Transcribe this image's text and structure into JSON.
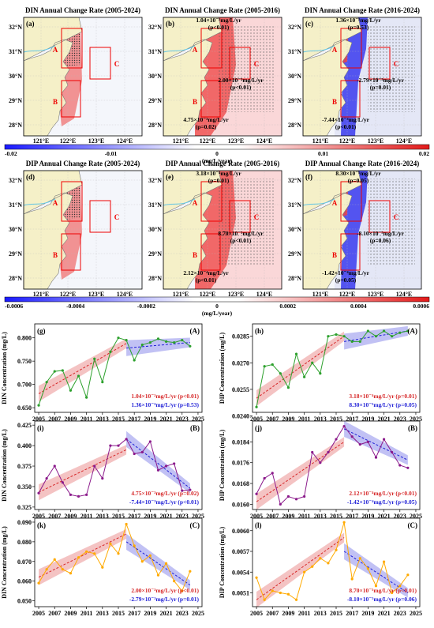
{
  "colors": {
    "red": "#d62728",
    "blue": "#1f1fd6",
    "green": "#2ca02c",
    "purple": "#8b1a8b",
    "orange": "#ffaa00"
  },
  "maps": [
    {
      "label": "(a)",
      "title": "DIN Annual Change Rate (2005-2024)",
      "variable": "DIN",
      "period": "full",
      "ann": []
    },
    {
      "label": "(b)",
      "title": "DIN Annual Change Rate (2005-2016)",
      "variable": "DIN",
      "period": "early",
      "ann": [
        {
          "text": "1.04×10⁻²mg/L/yr",
          "p": "(p<0.01)"
        },
        {
          "text": "2.00×10⁻³mg/L/yr",
          "p": "(p<0.01)"
        },
        {
          "text": "4.75×10⁻³mg/L/yr",
          "p": "(p=0.02)"
        }
      ]
    },
    {
      "label": "(c)",
      "title": "DIN Annual Change Rate (2016-2024)",
      "variable": "DIN",
      "period": "late",
      "ann": [
        {
          "text": "1.36×10⁻³mg/L/yr",
          "p": "(p=0.53)"
        },
        {
          "text": "-2.79×10⁻³mg/L/yr",
          "p": "(p=0.01)"
        },
        {
          "text": "-7.44×10⁻³mg/L/yr",
          "p": "(p<0.01)"
        }
      ]
    },
    {
      "label": "(d)",
      "title": "DIP Annual Change Rate (2005-2024)",
      "variable": "DIP",
      "period": "full",
      "ann": []
    },
    {
      "label": "(e)",
      "title": "DIP Annual Change Rate (2005-2016)",
      "variable": "DIP",
      "period": "early",
      "ann": [
        {
          "text": "3.18×10⁻⁴mg/L/yr",
          "p": "(p=0.01)"
        },
        {
          "text": "8.70×10⁻⁵mg/L/yr",
          "p": "(p<0.01)"
        },
        {
          "text": "2.12×10⁻⁴mg/L/yr",
          "p": "(p<0.01)"
        }
      ]
    },
    {
      "label": "(f)",
      "title": "DIP Annual Change Rate (2016-2024)",
      "variable": "DIP",
      "period": "late",
      "ann": [
        {
          "text": "8.30×10⁻⁵mg/L/yr",
          "p": "(p=0.05)"
        },
        {
          "text": "-8.10×10⁻⁵mg/L/yr",
          "p": "(p=0.06)"
        },
        {
          "text": "-1.42×10⁻⁴mg/L/yr",
          "p": "(p=0.05)"
        }
      ]
    }
  ],
  "map_axes": {
    "lat_ticks": [
      "32°N",
      "31°N",
      "30°N",
      "29°N",
      "28°N"
    ],
    "lon_ticks": [
      "121°E",
      "122°E",
      "123°E",
      "124°E"
    ],
    "box_labels": [
      "A",
      "B",
      "C"
    ]
  },
  "colorbars": [
    {
      "ticks": [
        "-0.02",
        "-0.01",
        "0",
        "0.01",
        "0.02"
      ],
      "unit": "(mg/L/year)"
    },
    {
      "ticks": [
        "-0.0006",
        "-0.0004",
        "-0.0002",
        "0",
        "0.0002",
        "0.0004",
        "0.0006"
      ],
      "unit": "(mg/L/year)"
    }
  ],
  "chart_data": [
    {
      "type": "line",
      "label": "(g)",
      "region": "(A)",
      "ylabel": "DIN Concentration (mg/L)",
      "color": "#2ca02c",
      "x": [
        2005,
        2006,
        2007,
        2008,
        2009,
        2010,
        2011,
        2012,
        2013,
        2014,
        2015,
        2016,
        2017,
        2018,
        2019,
        2020,
        2021,
        2022,
        2023,
        2024
      ],
      "y": [
        0.655,
        0.705,
        0.728,
        0.73,
        0.687,
        0.718,
        0.672,
        0.755,
        0.705,
        0.77,
        0.8,
        0.795,
        0.752,
        0.785,
        0.79,
        0.798,
        0.792,
        0.79,
        0.795,
        0.782
      ],
      "ylim": [
        0.64,
        0.83
      ],
      "yticks": [
        "0.800",
        "0.750",
        "0.700",
        "0.650"
      ],
      "ytick_vals": [
        0.8,
        0.75,
        0.7,
        0.65
      ],
      "xticks": [
        "2005",
        "2007",
        "2009",
        "2011",
        "2013",
        "2015",
        "2017",
        "2019",
        "2021",
        "2023",
        "2025"
      ],
      "trend1": {
        "x0": 2005,
        "y0": 0.68,
        "x1": 2016,
        "y1": 0.788,
        "text": "1.04×10⁻²mg/L/yr (p<0.01)"
      },
      "trend2": {
        "x0": 2016,
        "y0": 0.778,
        "x1": 2024,
        "y1": 0.79,
        "text": "1.36×10⁻³mg/L/yr (p=0.53)"
      }
    },
    {
      "type": "line",
      "label": "(h)",
      "region": "(A)",
      "ylabel": "DIP Concentration (mg/L)",
      "color": "#2ca02c",
      "x": [
        2005,
        2006,
        2007,
        2008,
        2009,
        2010,
        2011,
        2012,
        2013,
        2014,
        2015,
        2016,
        2017,
        2018,
        2019,
        2020,
        2021,
        2022,
        2023,
        2024
      ],
      "y": [
        0.0245,
        0.0268,
        0.0269,
        0.0264,
        0.0256,
        0.0275,
        0.0262,
        0.027,
        0.0264,
        0.0285,
        0.0286,
        0.0285,
        0.0282,
        0.0282,
        0.0288,
        0.0285,
        0.0288,
        0.0285,
        0.0287,
        0.0288
      ],
      "ylim": [
        0.0242,
        0.0292
      ],
      "yticks": [
        "0.0285",
        "0.0270",
        "0.0255",
        "0.0240"
      ],
      "ytick_vals": [
        0.0285,
        0.027,
        0.0255,
        0.024
      ],
      "xticks": [
        "2005",
        "2007",
        "2009",
        "2011",
        "2013",
        "2015",
        "2017",
        "2019",
        "2021",
        "2023",
        "2025"
      ],
      "trend1": {
        "x0": 2005,
        "y0": 0.025,
        "x1": 2016,
        "y1": 0.0285,
        "text": "3.18×10⁻⁴mg/L/yr (p=0.01)"
      },
      "trend2": {
        "x0": 2016,
        "y0": 0.0282,
        "x1": 2024,
        "y1": 0.0288,
        "text": "8.30×10⁻⁵mg/L/yr (p=0.05)"
      }
    },
    {
      "type": "line",
      "label": "(i)",
      "region": "(B)",
      "ylabel": "DIN Concentration (mg/L)",
      "color": "#8b1a8b",
      "x": [
        2005,
        2006,
        2007,
        2008,
        2009,
        2010,
        2011,
        2012,
        2013,
        2014,
        2015,
        2016,
        2017,
        2018,
        2019,
        2020,
        2021,
        2022,
        2023,
        2024
      ],
      "y": [
        0.342,
        0.36,
        0.375,
        0.355,
        0.34,
        0.338,
        0.34,
        0.375,
        0.36,
        0.4,
        0.4,
        0.408,
        0.39,
        0.392,
        0.405,
        0.37,
        0.375,
        0.378,
        0.345,
        0.346
      ],
      "ylim": [
        0.322,
        0.43
      ],
      "yticks": [
        "0.425",
        "0.400",
        "0.375",
        "0.350",
        "0.325"
      ],
      "ytick_vals": [
        0.425,
        0.4,
        0.375,
        0.35,
        0.325
      ],
      "xticks": [
        "2005",
        "2007",
        "2009",
        "2011",
        "2013",
        "2015",
        "2017",
        "2019",
        "2021",
        "2023",
        "2025"
      ],
      "trend1": {
        "x0": 2005,
        "y0": 0.343,
        "x1": 2016,
        "y1": 0.395,
        "text": "4.75×10⁻³mg/L/yr (p=0.02)"
      },
      "trend2": {
        "x0": 2016,
        "y0": 0.408,
        "x1": 2024,
        "y1": 0.348,
        "text": "-7.44×10⁻³mg/L/yr (p<0.01)"
      }
    },
    {
      "type": "line",
      "label": "(j)",
      "region": "(B)",
      "ylabel": "DIP Concentration (mg/L)",
      "color": "#8b1a8b",
      "x": [
        2005,
        2006,
        2007,
        2008,
        2009,
        2010,
        2011,
        2012,
        2013,
        2014,
        2015,
        2016,
        2017,
        2018,
        2019,
        2020,
        2021,
        2022,
        2023,
        2024
      ],
      "y": [
        0.0164,
        0.017,
        0.0172,
        0.016,
        0.0163,
        0.0162,
        0.0163,
        0.018,
        0.0176,
        0.018,
        0.0185,
        0.019,
        0.0186,
        0.0183,
        0.0184,
        0.0178,
        0.0185,
        0.018,
        0.0175,
        0.0174
      ],
      "ylim": [
        0.0158,
        0.0192
      ],
      "yticks": [
        "0.0184",
        "0.0176",
        "0.0168",
        "0.0160"
      ],
      "ytick_vals": [
        0.0184,
        0.0176,
        0.0168,
        0.016
      ],
      "xticks": [
        "2005",
        "2007",
        "2009",
        "2011",
        "2013",
        "2015",
        "2017",
        "2019",
        "2021",
        "2023",
        "2025"
      ],
      "trend1": {
        "x0": 2005,
        "y0": 0.0161,
        "x1": 2016,
        "y1": 0.0184,
        "text": "2.12×10⁻⁴mg/L/yr (p<0.01)"
      },
      "trend2": {
        "x0": 2016,
        "y0": 0.0189,
        "x1": 2024,
        "y1": 0.0177,
        "text": "-1.42×10⁻⁴mg/L/yr (p=0.05)"
      }
    },
    {
      "type": "line",
      "label": "(k)",
      "region": "(C)",
      "ylabel": "DIN Concentration (mg/L)",
      "color": "#ffaa00",
      "x": [
        2005,
        2006,
        2007,
        2008,
        2009,
        2010,
        2011,
        2012,
        2013,
        2014,
        2015,
        2016,
        2017,
        2018,
        2019,
        2020,
        2021,
        2022,
        2023,
        2024
      ],
      "y": [
        0.059,
        0.066,
        0.071,
        0.066,
        0.064,
        0.072,
        0.075,
        0.074,
        0.067,
        0.079,
        0.074,
        0.089,
        0.078,
        0.07,
        0.073,
        0.063,
        0.069,
        0.06,
        0.055,
        0.065
      ],
      "ylim": [
        0.047,
        0.092
      ],
      "yticks": [
        "0.090",
        "0.080",
        "0.070",
        "0.060",
        "0.050"
      ],
      "ytick_vals": [
        0.09,
        0.08,
        0.07,
        0.06,
        0.05
      ],
      "xticks": [
        "2005",
        "2007",
        "2009",
        "2011",
        "2013",
        "2015",
        "2017",
        "2019",
        "2021",
        "2023",
        "2025"
      ],
      "trend1": {
        "x0": 2005,
        "y0": 0.062,
        "x1": 2016,
        "y1": 0.084,
        "text": "2.00×10⁻³mg/L/yr (p<0.01)"
      },
      "trend2": {
        "x0": 2016,
        "y0": 0.08,
        "x1": 2024,
        "y1": 0.058,
        "text": "-2.79×10⁻³mg/L/yr (p=0.01)"
      }
    },
    {
      "type": "line",
      "label": "(l)",
      "region": "(C)",
      "ylabel": "DIP Concentration (mg/L)",
      "color": "#ffaa00",
      "x": [
        2005,
        2006,
        2007,
        2008,
        2009,
        2010,
        2011,
        2012,
        2013,
        2014,
        2015,
        2016,
        2017,
        2018,
        2019,
        2020,
        2021,
        2022,
        2023,
        2024
      ],
      "y": [
        0.00532,
        0.005,
        0.00513,
        0.0051,
        0.00508,
        0.005,
        0.0054,
        0.00548,
        0.0056,
        0.00553,
        0.00572,
        0.00612,
        0.0053,
        0.0056,
        0.00545,
        0.0052,
        0.00555,
        0.0051,
        0.0052,
        0.00536
      ],
      "ylim": [
        0.0049,
        0.00618
      ],
      "yticks": [
        "0.0060",
        "0.0057",
        "0.0054",
        "0.0051"
      ],
      "ytick_vals": [
        0.006,
        0.0057,
        0.0054,
        0.0051
      ],
      "xticks": [
        "2005",
        "2007",
        "2009",
        "2011",
        "2013",
        "2015",
        "2017",
        "2019",
        "2021",
        "2023",
        "2025"
      ],
      "trend1": {
        "x0": 2005,
        "y0": 0.005,
        "x1": 2016,
        "y1": 0.0059,
        "text": "8.70×10⁻⁵mg/L/yr (p<0.01)"
      },
      "trend2": {
        "x0": 2016,
        "y0": 0.0057,
        "x1": 2024,
        "y1": 0.0051,
        "text": "-8.10×10⁻⁵mg/L/yr (p=0.06)"
      }
    }
  ]
}
